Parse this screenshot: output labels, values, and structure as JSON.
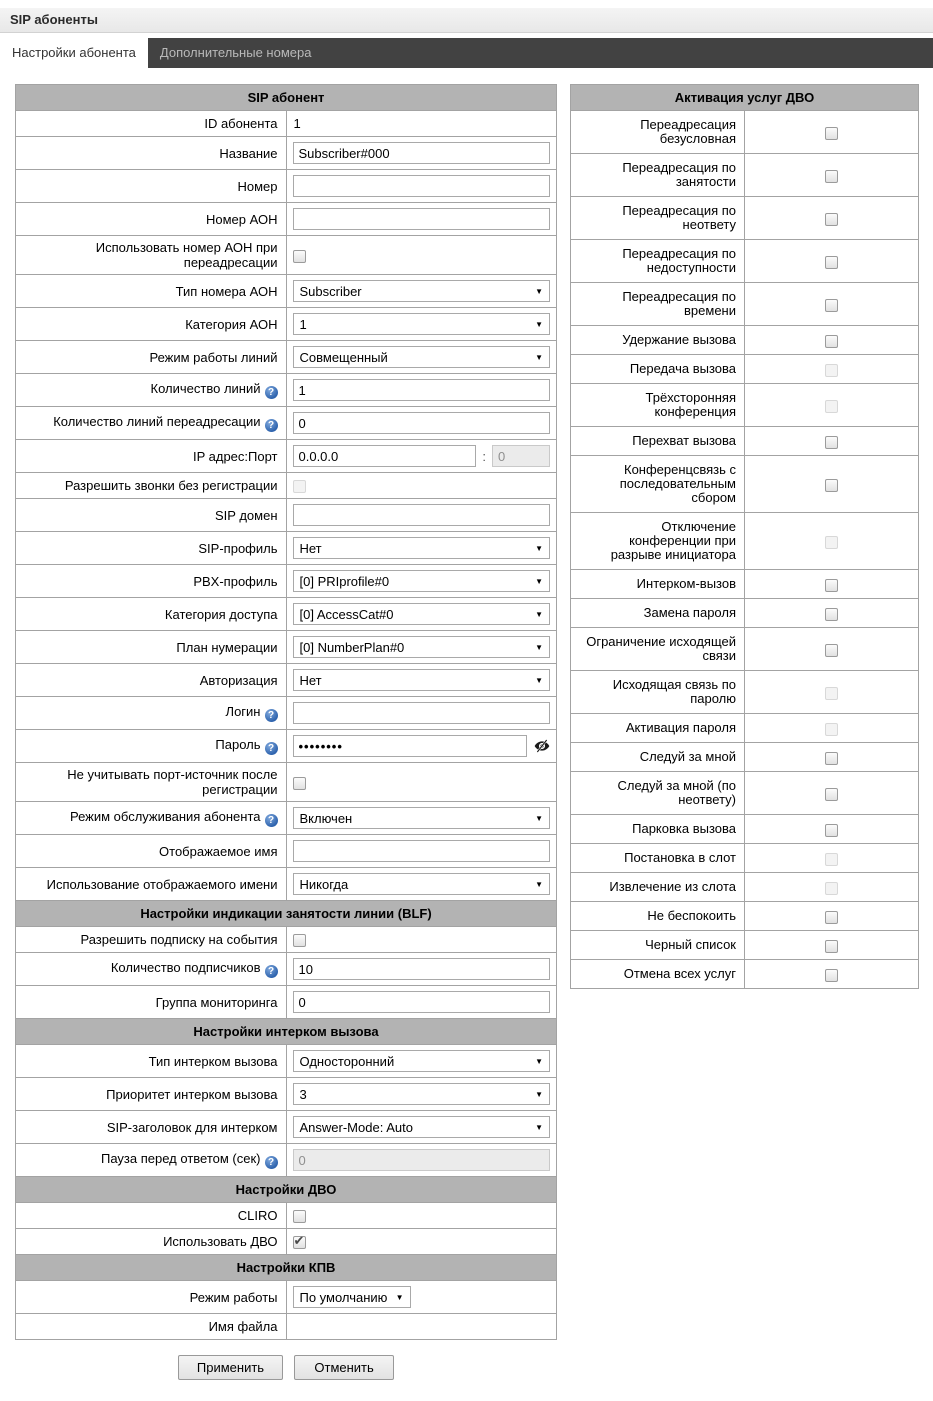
{
  "titlebar": {
    "title": "SIP абоненты"
  },
  "tabs": [
    {
      "label": "Настройки абонента",
      "active": true
    },
    {
      "label": "Дополнительные номера",
      "active": false
    }
  ],
  "colors": {
    "tabbar_bg": "#424242",
    "active_tab_bg": "#ffffff",
    "section_header_bg": "#b3b3b3",
    "help_icon_blue": "#2f64ae"
  },
  "icons": {
    "help_glyph": "?",
    "select_arrow": "▼",
    "checkmark": "✔",
    "password_toggle": "eye-slash"
  },
  "left_table": {
    "rows": [
      {
        "type": "header",
        "label": "SIP абонент"
      },
      {
        "type": "static",
        "label": "ID абонента",
        "value": "1"
      },
      {
        "type": "input",
        "label": "Название",
        "value": "Subscriber#000"
      },
      {
        "type": "input",
        "label": "Номер",
        "value": ""
      },
      {
        "type": "input",
        "label": "Номер АОН",
        "value": ""
      },
      {
        "type": "checkbox",
        "label": "Использовать номер АОН при переадресации",
        "checked": false,
        "disabled": false
      },
      {
        "type": "select",
        "label": "Тип номера АОН",
        "value": "Subscriber"
      },
      {
        "type": "select",
        "label": "Категория АОН",
        "value": "1"
      },
      {
        "type": "select",
        "label": "Режим работы линий",
        "value": "Совмещенный"
      },
      {
        "type": "input",
        "label": "Количество линий",
        "help": true,
        "value": "1"
      },
      {
        "type": "input",
        "label": "Количество линий переадресации",
        "help": true,
        "value": "0"
      },
      {
        "type": "ipport",
        "label": "IP адрес:Порт",
        "value": "0.0.0.0",
        "separator": ":",
        "port": "0",
        "port_disabled": true
      },
      {
        "type": "checkbox",
        "label": "Разрешить звонки без регистрации",
        "checked": false,
        "disabled": true
      },
      {
        "type": "input",
        "label": "SIP домен",
        "value": ""
      },
      {
        "type": "select",
        "label": "SIP-профиль",
        "value": "Нет"
      },
      {
        "type": "select",
        "label": "PBX-профиль",
        "value": "[0] PRIprofile#0"
      },
      {
        "type": "select",
        "label": "Категория доступа",
        "value": "[0] AccessCat#0"
      },
      {
        "type": "select",
        "label": "План нумерации",
        "value": "[0] NumberPlan#0"
      },
      {
        "type": "select",
        "label": "Авторизация",
        "value": "Нет"
      },
      {
        "type": "input",
        "label": "Логин",
        "help": true,
        "value": ""
      },
      {
        "type": "password",
        "label": "Пароль",
        "help": true,
        "value": "••••••••"
      },
      {
        "type": "checkbox",
        "label": "Не учитывать порт-источник после регистрации",
        "checked": false,
        "disabled": false
      },
      {
        "type": "select",
        "label": "Режим обслуживания абонента",
        "help": true,
        "value": "Включен"
      },
      {
        "type": "input",
        "label": "Отображаемое имя",
        "value": ""
      },
      {
        "type": "select",
        "label": "Использование отображаемого имени",
        "value": "Никогда"
      },
      {
        "type": "header",
        "label": "Настройки индикации занятости линии (BLF)"
      },
      {
        "type": "checkbox",
        "label": "Разрешить подписку на события",
        "checked": false,
        "disabled": false
      },
      {
        "type": "input",
        "label": "Количество подписчиков",
        "help": true,
        "value": "10"
      },
      {
        "type": "input",
        "label": "Группа мониторинга",
        "value": "0"
      },
      {
        "type": "header",
        "label": "Настройки интерком вызова"
      },
      {
        "type": "select",
        "label": "Тип интерком вызова",
        "value": "Односторонний"
      },
      {
        "type": "select",
        "label": "Приоритет интерком вызова",
        "value": "3"
      },
      {
        "type": "select",
        "label": "SIP-заголовок для интерком",
        "value": "Answer-Mode: Auto"
      },
      {
        "type": "input",
        "label": "Пауза перед ответом (сек)",
        "help": true,
        "value": "0",
        "disabled": true
      },
      {
        "type": "header",
        "label": "Настройки ДВО"
      },
      {
        "type": "checkbox",
        "label": "CLIRO",
        "checked": false,
        "disabled": false
      },
      {
        "type": "checkbox",
        "label": "Использовать ДВО",
        "checked": true,
        "disabled": false
      },
      {
        "type": "header",
        "label": "Настройки КПВ"
      },
      {
        "type": "select",
        "label": "Режим работы",
        "value": "По умолчанию",
        "narrow": true
      },
      {
        "type": "static",
        "label": "Имя файла",
        "value": ""
      }
    ]
  },
  "right_table": {
    "title": "Активация услуг ДВО",
    "rows": [
      {
        "label": "Переадресация безусловная",
        "checked": false,
        "disabled": false
      },
      {
        "label": "Переадресация по занятости",
        "checked": false,
        "disabled": false
      },
      {
        "label": "Переадресация по неответу",
        "checked": false,
        "disabled": false
      },
      {
        "label": "Переадресация по недоступности",
        "checked": false,
        "disabled": false
      },
      {
        "label": "Переадресация по времени",
        "checked": false,
        "disabled": false
      },
      {
        "label": "Удержание вызова",
        "checked": false,
        "disabled": false
      },
      {
        "label": "Передача вызова",
        "checked": false,
        "disabled": true
      },
      {
        "label": "Трёхсторонняя конференция",
        "checked": false,
        "disabled": true
      },
      {
        "label": "Перехват вызова",
        "checked": false,
        "disabled": false
      },
      {
        "label": "Конференцсвязь с последовательным сбором",
        "checked": false,
        "disabled": false
      },
      {
        "label": "Отключение конференции при разрыве инициатора",
        "checked": false,
        "disabled": true
      },
      {
        "label": "Интерком-вызов",
        "checked": false,
        "disabled": false
      },
      {
        "label": "Замена пароля",
        "checked": false,
        "disabled": false
      },
      {
        "label": "Ограничение исходящей связи",
        "checked": false,
        "disabled": false
      },
      {
        "label": "Исходящая связь по паролю",
        "checked": false,
        "disabled": true
      },
      {
        "label": "Активация пароля",
        "checked": false,
        "disabled": true
      },
      {
        "label": "Следуй за мной",
        "checked": false,
        "disabled": false
      },
      {
        "label": "Следуй за мной (по неответу)",
        "checked": false,
        "disabled": false
      },
      {
        "label": "Парковка вызова",
        "checked": false,
        "disabled": false
      },
      {
        "label": "Постановка в слот",
        "checked": false,
        "disabled": true
      },
      {
        "label": "Извлечение из слота",
        "checked": false,
        "disabled": true
      },
      {
        "label": "Не беспокоить",
        "checked": false,
        "disabled": false
      },
      {
        "label": "Черный список",
        "checked": false,
        "disabled": false
      },
      {
        "label": "Отмена всех услуг",
        "checked": false,
        "disabled": false
      }
    ]
  },
  "buttons": {
    "apply": "Применить",
    "cancel": "Отменить"
  }
}
